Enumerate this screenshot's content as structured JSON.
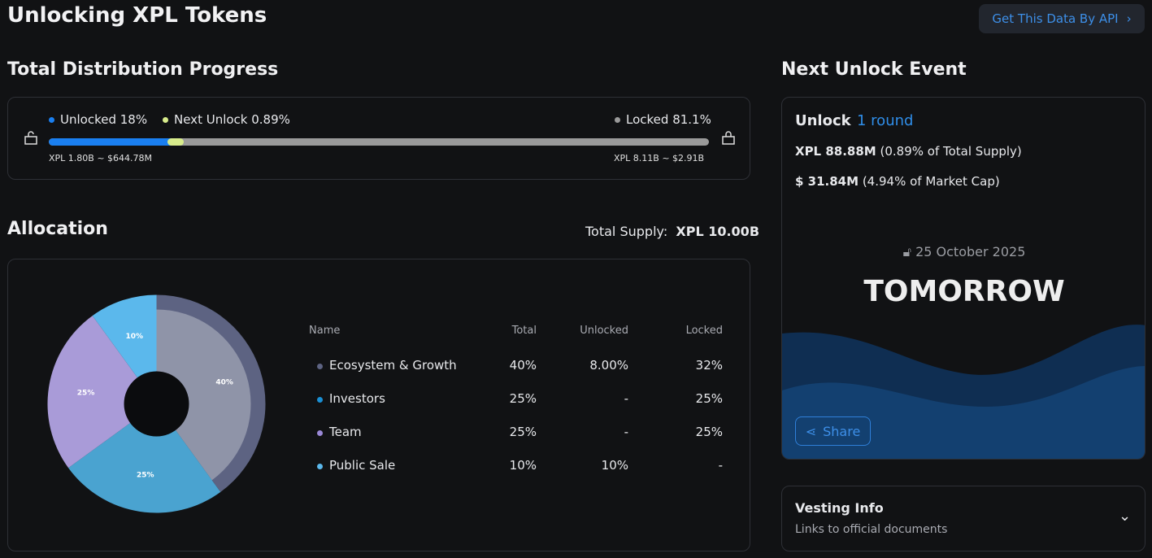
{
  "title": "Unlocking XPL Tokens",
  "api_button": "Get This Data By API",
  "progress": {
    "heading": "Total Distribution Progress",
    "unlocked_label": "Unlocked 18%",
    "next_label": "Next Unlock 0.89%",
    "locked_label": "Locked 81.1%",
    "unlocked_pct": 18,
    "next_pct": 0.89,
    "locked_pct": 81.1,
    "unlocked_amount": "XPL 1.80B ~ $644.78M",
    "locked_amount": "XPL 8.11B ~ $2.91B",
    "colors": {
      "unlocked": "#1a7ff0",
      "next": "#d8ec8c",
      "locked": "#9a9a9a"
    }
  },
  "allocation": {
    "heading": "Allocation",
    "supply_label": "Total Supply:",
    "supply_value": "XPL 10.00B",
    "columns": [
      "Name",
      "Total",
      "Unlocked",
      "Locked"
    ],
    "rows": [
      {
        "name": "Ecosystem & Growth",
        "total": "40%",
        "unlocked": "8.00%",
        "locked": "32%",
        "color": "#5d6382"
      },
      {
        "name": "Investors",
        "total": "25%",
        "unlocked": "-",
        "locked": "25%",
        "color": "#1a8fd4"
      },
      {
        "name": "Team",
        "total": "25%",
        "unlocked": "-",
        "locked": "25%",
        "color": "#9a88d6"
      },
      {
        "name": "Public Sale",
        "total": "10%",
        "unlocked": "10%",
        "locked": "-",
        "color": "#5bb8ec"
      }
    ]
  },
  "chart_data": {
    "type": "pie",
    "categories": [
      "Ecosystem & Growth",
      "Investors",
      "Team",
      "Public Sale"
    ],
    "values": [
      40,
      25,
      25,
      10
    ],
    "labels": [
      "40%",
      "25%",
      "25%",
      "10%"
    ],
    "colors": [
      "#8f94a8",
      "#4aa3d0",
      "#a99bd8",
      "#5bb8ec"
    ]
  },
  "next_unlock": {
    "heading": "Next Unlock Event",
    "unlock_label": "Unlock",
    "rounds": "1 round",
    "tokens_bold": "XPL 88.88M",
    "tokens_rest": "(0.89% of Total Supply)",
    "usd_bold": "$ 31.84M",
    "usd_rest": "(4.94% of Market Cap)",
    "date": "25 October 2025",
    "countdown": "TOMORROW",
    "share": "Share"
  },
  "vesting": {
    "title": "Vesting Info",
    "subtitle": "Links to official documents"
  }
}
